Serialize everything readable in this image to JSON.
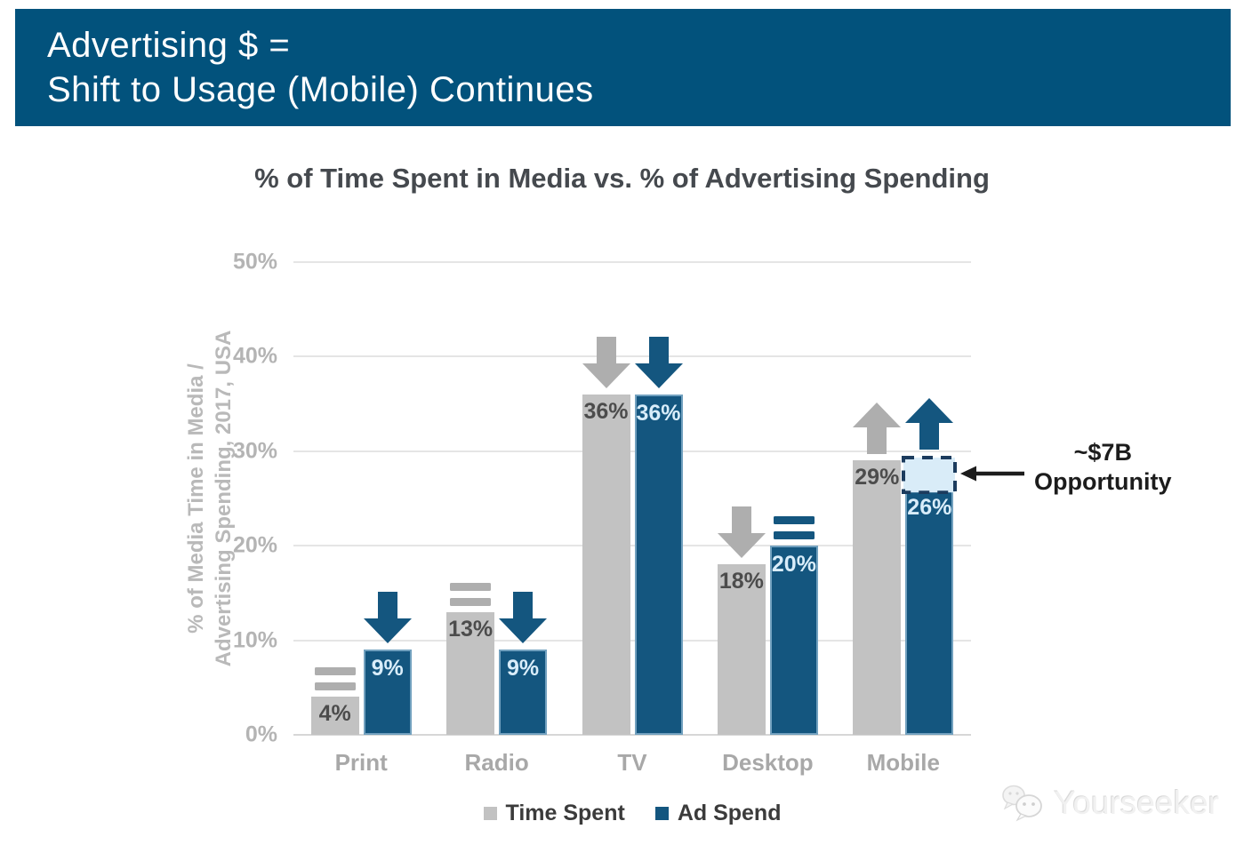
{
  "banner": {
    "line1": "Advertising $ =",
    "line2": "Shift to Usage (Mobile) Continues",
    "background": "#02527c"
  },
  "chart_data": {
    "type": "bar",
    "title": "% of Time Spent in Media vs. % of Advertising Spending",
    "ylabel_line1": "% of Media Time in Media /",
    "ylabel_line2": "Advertising Spending, 2017, USA",
    "categories": [
      "Print",
      "Radio",
      "TV",
      "Desktop",
      "Mobile"
    ],
    "series": [
      {
        "name": "Time Spent",
        "color": "#c2c2c2",
        "indicator_color": "#aeaeae",
        "label_color": "#4c4c4c",
        "values": [
          4,
          13,
          36,
          18,
          29
        ],
        "labels": [
          "4%",
          "13%",
          "36%",
          "18%",
          "29%"
        ],
        "trends": [
          "equal",
          "equal",
          "down",
          "down",
          "up"
        ]
      },
      {
        "name": "Ad Spend",
        "color": "#14567f",
        "indicator_color": "#14567f",
        "label_color": "#d9edfa",
        "values": [
          9,
          9,
          36,
          20,
          26
        ],
        "labels": [
          "9%",
          "9%",
          "36%",
          "20%",
          "26%"
        ],
        "trends": [
          "down",
          "down",
          "down",
          "equal",
          "up"
        ]
      }
    ],
    "yticks": [
      "0%",
      "10%",
      "20%",
      "30%",
      "40%",
      "50%"
    ],
    "ylim": [
      0,
      50
    ],
    "grid": true,
    "legend_position": "bottom",
    "annotation": {
      "line1": "~$7B",
      "line2": "Opportunity",
      "category_index": 4,
      "series_index": 1,
      "box_bottom_value": 26,
      "box_top_value": 29.5,
      "box_fill": "#d9ecf8",
      "box_border": "#1c3c5e",
      "arrow_color": "#1c1c1c"
    }
  },
  "watermark": {
    "text": "Yourseeker"
  }
}
